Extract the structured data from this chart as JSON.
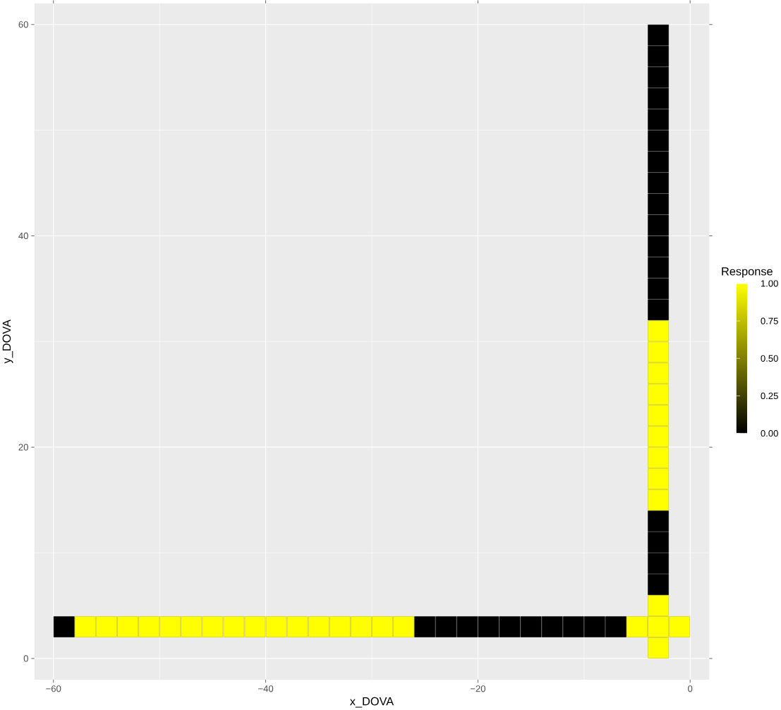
{
  "chart_data": {
    "type": "scatter",
    "xlabel": "x_DOVA",
    "ylabel": "y_DOVA",
    "clabel": "Response",
    "x": [
      -59,
      -57,
      -55,
      -53,
      -51,
      -49,
      -47,
      -45,
      -43,
      -41,
      -39,
      -37,
      -35,
      -33,
      -31,
      -29,
      -27,
      -25,
      -23,
      -21,
      -19,
      -17,
      -15,
      -13,
      -11,
      -9,
      -7,
      -5,
      -3,
      -1,
      -3,
      -3,
      -3,
      -3,
      -3,
      -3,
      -3,
      -3,
      -3,
      -3,
      -3,
      -3,
      -3,
      -3,
      -3,
      -3,
      -3,
      -3,
      -3,
      -3,
      -3,
      -3,
      -3,
      -3,
      -3,
      -3,
      -3,
      -3,
      -3
    ],
    "values": [
      3,
      3,
      3,
      3,
      3,
      3,
      3,
      3,
      3,
      3,
      3,
      3,
      3,
      3,
      3,
      3,
      3,
      3,
      3,
      3,
      3,
      3,
      3,
      3,
      3,
      3,
      3,
      3,
      3,
      3,
      1,
      5,
      7,
      9,
      11,
      13,
      15,
      17,
      19,
      21,
      23,
      25,
      27,
      29,
      31,
      33,
      35,
      37,
      39,
      41,
      43,
      45,
      47,
      49,
      51,
      53,
      55,
      57,
      59
    ],
    "cvalues": [
      0,
      1,
      1,
      1,
      1,
      1,
      1,
      1,
      1,
      1,
      1,
      1,
      1,
      1,
      1,
      1,
      1,
      0,
      0,
      0,
      0,
      0,
      0,
      0,
      0,
      0,
      0,
      1,
      1,
      1,
      1,
      1,
      0,
      0,
      0,
      0,
      1,
      1,
      1,
      1,
      1,
      1,
      1,
      1,
      1,
      0,
      0,
      0,
      0,
      0,
      0,
      0,
      0,
      0,
      0,
      0,
      0,
      0,
      0
    ],
    "marker": "square",
    "grid": true,
    "xlim": [
      -61.8,
      1.8
    ],
    "ylim": [
      -2,
      62
    ],
    "xticks": [
      {
        "value": -60,
        "label": "−60"
      },
      {
        "value": -40,
        "label": "−40"
      },
      {
        "value": -20,
        "label": "−20"
      },
      0
    ],
    "yticks": [
      0,
      20,
      40,
      60
    ],
    "clim": [
      0,
      1
    ],
    "cticks": [
      {
        "value": 0,
        "label": "0.00"
      },
      {
        "value": 0.25,
        "label": "0.25"
      },
      {
        "value": 0.5,
        "label": "0.50"
      },
      {
        "value": 0.75,
        "label": "0.75"
      },
      {
        "value": 1,
        "label": "1.00"
      }
    ]
  }
}
